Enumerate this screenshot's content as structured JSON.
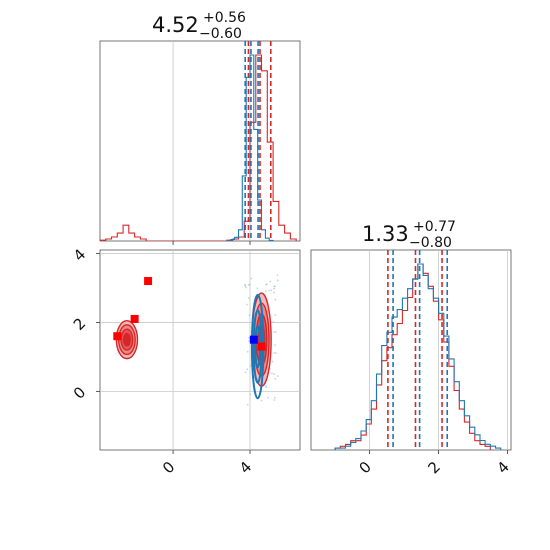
{
  "chart_data": [
    {
      "type": "histogram",
      "panel": "top-left",
      "title": "4.52",
      "title_upper": "+0.56",
      "title_lower": "−0.60",
      "xlim": [
        -3.8,
        6.6
      ],
      "grid": true,
      "series": [
        {
          "color": "#d62728",
          "bin_edges": [
            -3.8,
            -3.5,
            -3.2,
            -2.9,
            -2.6,
            -2.3,
            -2.0,
            -1.7,
            -1.4,
            -1.1,
            -0.8,
            -0.5,
            -0.2,
            0.1,
            0.4,
            0.7,
            1.0,
            1.3,
            1.6,
            1.9,
            2.2,
            2.5,
            2.8,
            3.1,
            3.4,
            3.7,
            4.0,
            4.3,
            4.6,
            4.9,
            5.2,
            5.5,
            5.8,
            6.1,
            6.4
          ],
          "counts": [
            0.2,
            0.5,
            1.0,
            2.0,
            4.0,
            2.0,
            1.0,
            0.5,
            0.0,
            0.0,
            0.0,
            0.0,
            0.0,
            0.0,
            0.0,
            0.0,
            0.0,
            0.0,
            0.0,
            0.0,
            0.0,
            0.0,
            0.2,
            0.5,
            1.0,
            5.0,
            30.0,
            47.0,
            43.0,
            25.0,
            10.0,
            4.0,
            2.0,
            0.5
          ],
          "quantile_lines": [
            3.92,
            4.52,
            5.08
          ]
        },
        {
          "color": "#1f77b4",
          "bin_edges": [
            2.8,
            3.0,
            3.2,
            3.4,
            3.6,
            3.8,
            4.0,
            4.2,
            4.4,
            4.6,
            4.8,
            5.0,
            5.2
          ],
          "counts": [
            0.2,
            0.8,
            2.0,
            6.0,
            35.0,
            88.0,
            100.0,
            60.0,
            22.0,
            6.0,
            1.5,
            0.3
          ],
          "quantile_lines": [
            3.75,
            4.05,
            4.42
          ]
        }
      ]
    },
    {
      "type": "contour",
      "panel": "bottom-left",
      "xlim": [
        -3.8,
        6.6
      ],
      "ylim": [
        -1.7,
        4.1
      ],
      "xticks": [
        "0",
        "4"
      ],
      "yticks": [
        "0",
        "2",
        "4"
      ],
      "grid": true,
      "markers": [
        {
          "color": "#ff0000",
          "x": -1.3,
          "y": 3.2
        },
        {
          "color": "#ff0000",
          "x": -2.0,
          "y": 2.1
        },
        {
          "color": "#ff0000",
          "x": -2.9,
          "y": 1.6
        },
        {
          "color": "#ff0000",
          "x": 4.6,
          "y": 1.3
        },
        {
          "color": "#0000ff",
          "x": 4.2,
          "y": 1.5
        }
      ],
      "regions": [
        {
          "color": "#d62728",
          "center": [
            4.6,
            1.5
          ],
          "spread": [
            1.0,
            2.7
          ]
        },
        {
          "color": "#d62728",
          "center": [
            -2.4,
            1.5
          ],
          "spread": [
            1.1,
            1.1
          ]
        },
        {
          "color": "#1f77b4",
          "center": [
            4.4,
            1.3
          ],
          "spread": [
            0.6,
            3.0
          ]
        }
      ]
    },
    {
      "type": "histogram",
      "panel": "bottom-right",
      "title": "1.33",
      "title_upper": "+0.77",
      "title_lower": "−0.80",
      "xlim": [
        -1.7,
        4.1
      ],
      "xticks": [
        "0",
        "2",
        "4"
      ],
      "grid": true,
      "series": [
        {
          "color": "#d62728",
          "bin_edges": [
            -1.0,
            -0.85,
            -0.7,
            -0.55,
            -0.4,
            -0.25,
            -0.1,
            0.05,
            0.2,
            0.35,
            0.5,
            0.65,
            0.8,
            0.95,
            1.1,
            1.25,
            1.4,
            1.55,
            1.7,
            1.85,
            2.0,
            2.15,
            2.3,
            2.45,
            2.6,
            2.75,
            2.9,
            3.05,
            3.2,
            3.35,
            3.5
          ],
          "counts": [
            1,
            2,
            3,
            5,
            5,
            8,
            14,
            22,
            35,
            48,
            55,
            62,
            68,
            75,
            82,
            92,
            100,
            95,
            88,
            80,
            70,
            58,
            45,
            32,
            22,
            15,
            9,
            5,
            3,
            2
          ],
          "quantile_lines": [
            0.53,
            1.33,
            2.1
          ]
        },
        {
          "color": "#1f77b4",
          "bin_edges": [
            -1.0,
            -0.85,
            -0.7,
            -0.55,
            -0.4,
            -0.25,
            -0.1,
            0.05,
            0.2,
            0.35,
            0.5,
            0.65,
            0.8,
            0.95,
            1.1,
            1.25,
            1.4,
            1.55,
            1.7,
            1.85,
            2.0,
            2.15,
            2.3,
            2.45,
            2.6,
            2.75,
            2.9,
            3.05,
            3.2,
            3.35,
            3.5,
            3.65,
            3.8
          ],
          "counts": [
            1,
            1,
            2,
            4,
            6,
            10,
            16,
            26,
            40,
            55,
            62,
            70,
            74,
            80,
            85,
            90,
            98,
            92,
            85,
            80,
            72,
            60,
            48,
            36,
            26,
            18,
            12,
            8,
            5,
            3,
            2,
            1
          ],
          "quantile_lines": [
            0.68,
            1.45,
            2.25
          ]
        }
      ]
    }
  ]
}
